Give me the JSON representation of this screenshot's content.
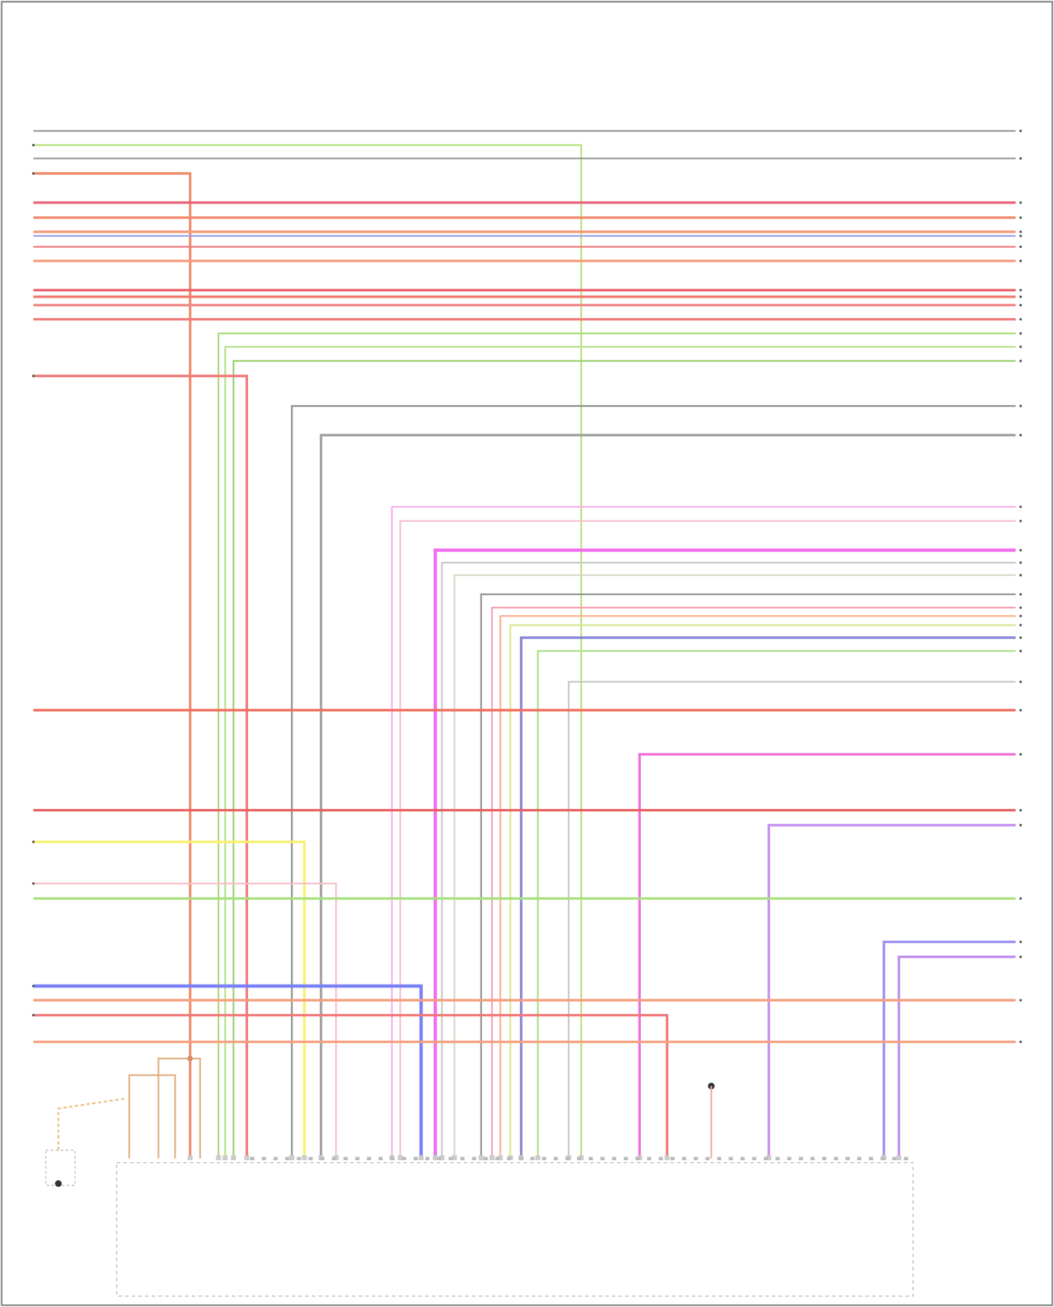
{
  "diagram": {
    "wires": [
      {
        "color": "#9a9a9a"
      },
      {
        "color": "#b5e07a"
      },
      {
        "color": "#9a9a9a"
      },
      {
        "color": "#f08a6a"
      },
      {
        "color": "#e8607a"
      },
      {
        "color": "#f08a6a"
      },
      {
        "color": "#f39a78"
      },
      {
        "color": "#9aa0e8"
      },
      {
        "color": "#f07a80"
      },
      {
        "color": "#f5a080"
      },
      {
        "color": "#e8606a"
      },
      {
        "color": "#f07a70"
      },
      {
        "color": "#f08888"
      },
      {
        "color": "#f07a7a"
      },
      {
        "color": "#a8dc78"
      },
      {
        "color": "#b8e088"
      },
      {
        "color": "#98d070"
      },
      {
        "color": "#f07a7a"
      },
      {
        "color": "#8c8c8c"
      },
      {
        "color": "#a0a0a0"
      },
      {
        "color": "#f4b0e8"
      },
      {
        "color": "#f8c0d0"
      },
      {
        "color": "#f070f0"
      },
      {
        "color": "#c8c8c8"
      },
      {
        "color": "#d8d8c8"
      },
      {
        "color": "#909090"
      },
      {
        "color": "#f8a0b0"
      },
      {
        "color": "#f8b090"
      },
      {
        "color": "#d8e890"
      },
      {
        "color": "#8888d8"
      },
      {
        "color": "#a8e088"
      },
      {
        "color": "#c8c8c8"
      },
      {
        "color": "#f07060"
      },
      {
        "color": "#ee70d8"
      },
      {
        "color": "#e86060"
      },
      {
        "color": "#c890f0"
      },
      {
        "color": "#f8f070"
      },
      {
        "color": "#f8c0c8"
      },
      {
        "color": "#a8e080"
      },
      {
        "color": "#9a90f0"
      },
      {
        "color": "#c090f0"
      },
      {
        "color": "#7a80f8"
      },
      {
        "color": "#f4a080"
      },
      {
        "color": "#f07878"
      },
      {
        "color": "#f5a080"
      }
    ]
  }
}
